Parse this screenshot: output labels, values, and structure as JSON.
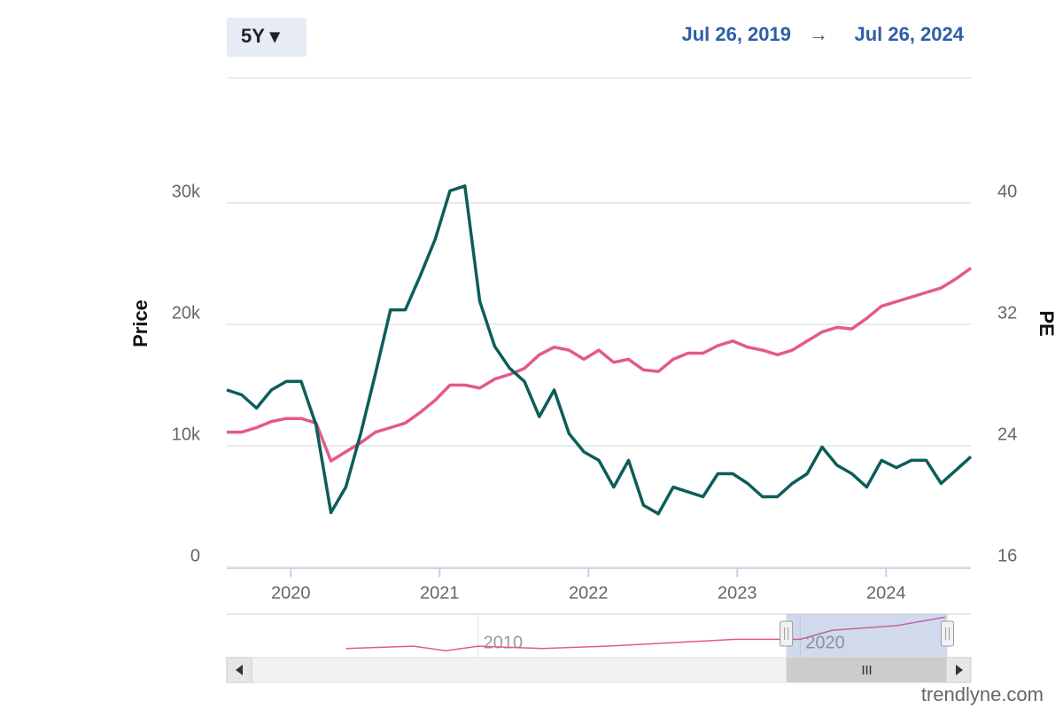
{
  "header": {
    "range": "5Y ▾",
    "from": "Jul 26, 2019",
    "arrow": "→",
    "to": "Jul 26, 2024"
  },
  "chart_data": {
    "type": "line",
    "y_label": "Price",
    "y2_label": "PE",
    "x": [
      2019.57,
      2019.67,
      2019.77,
      2019.87,
      2019.97,
      2020.07,
      2020.17,
      2020.27,
      2020.37,
      2020.47,
      2020.57,
      2020.67,
      2020.77,
      2020.87,
      2020.97,
      2021.07,
      2021.17,
      2021.27,
      2021.37,
      2021.47,
      2021.57,
      2021.67,
      2021.77,
      2021.87,
      2021.97,
      2022.07,
      2022.17,
      2022.27,
      2022.37,
      2022.47,
      2022.57,
      2022.67,
      2022.77,
      2022.87,
      2022.97,
      2023.07,
      2023.17,
      2023.27,
      2023.37,
      2023.47,
      2023.57,
      2023.67,
      2023.77,
      2023.87,
      2023.97,
      2024.07,
      2024.17,
      2024.27,
      2024.37,
      2024.47,
      2024.57
    ],
    "xlim": [
      2019.57,
      2024.57
    ],
    "xticks": [
      2020,
      2021,
      2022,
      2023,
      2024
    ],
    "ylim": [
      0,
      40000
    ],
    "yticks": [
      0,
      {
        "value": 10000,
        "label": "10k"
      },
      {
        "value": 20000,
        "label": "20k"
      },
      {
        "value": 30000,
        "label": "30k"
      }
    ],
    "y2lim": [
      16,
      48
    ],
    "y2ticks": [
      16,
      24,
      32,
      40
    ],
    "grid": true,
    "series": [
      {
        "name": "Price",
        "color": "#0b5e5a",
        "values": [
          14600,
          14200,
          13100,
          14600,
          15300,
          15300,
          11700,
          4500,
          6600,
          11000,
          16000,
          21200,
          21200,
          24000,
          27000,
          31000,
          31400,
          21900,
          18200,
          16400,
          15300,
          12400,
          14600,
          11000,
          9500,
          8800,
          6600,
          8800,
          5100,
          4400,
          6600,
          6200,
          5800,
          7700,
          7700,
          6900,
          5800,
          5800,
          6900,
          7700,
          9900,
          8400,
          7700,
          6600,
          8800,
          8200,
          8800,
          8800,
          6900,
          8000,
          9100
        ]
      },
      {
        "name": "PE",
        "color": "#e4588f",
        "axis": "y2",
        "values": [
          24.9,
          24.9,
          25.2,
          25.6,
          25.8,
          25.8,
          25.5,
          23.0,
          23.6,
          24.2,
          24.9,
          25.2,
          25.5,
          26.2,
          27.0,
          28.0,
          28.0,
          27.8,
          28.4,
          28.7,
          29.1,
          30.0,
          30.5,
          30.3,
          29.7,
          30.3,
          29.5,
          29.7,
          29.0,
          28.9,
          29.7,
          30.1,
          30.1,
          30.6,
          30.9,
          30.5,
          30.3,
          30.0,
          30.3,
          30.9,
          31.5,
          31.8,
          31.7,
          32.4,
          33.2,
          33.5,
          33.8,
          34.1,
          34.4,
          35.0,
          35.7
        ]
      }
    ]
  },
  "navigator": {
    "x": [
      2005.9,
      2008,
      2009,
      2010,
      2012,
      2014,
      2016,
      2018,
      2020,
      2021,
      2022,
      2023,
      2024.5
    ],
    "values": [
      22,
      23,
      21,
      23,
      22,
      23,
      24.5,
      26,
      26,
      30,
      31,
      32,
      35.7
    ],
    "xlim": [
      2002.2,
      2025.3
    ],
    "ylim": [
      18,
      37
    ],
    "xticks": [
      2010,
      2020
    ],
    "color": "#e4588f"
  },
  "watermark": "trendlyne.com"
}
